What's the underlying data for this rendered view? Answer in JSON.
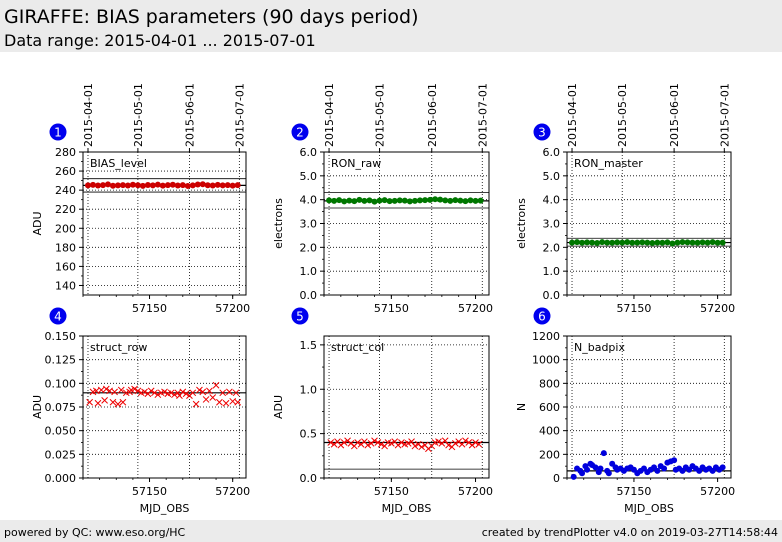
{
  "header": {
    "title": "GIRAFFE: BIAS parameters (90 days period)",
    "subtitle": "Data range: 2015-04-01 ... 2015-07-01"
  },
  "footer": {
    "left": "powered by QC: www.eso.org/HC",
    "right": "created by trendPlotter v4.0 on 2019-03-27T14:58:44"
  },
  "date_ticks": [
    "2015-04-01",
    "2015-05-01",
    "2015-06-01",
    "2015-07-01"
  ],
  "date_tick_mjd": [
    57113,
    57143,
    57174,
    57204
  ],
  "x_range_mjd": [
    57110,
    57208
  ],
  "x_ticks": [
    57150,
    57200
  ],
  "x_tick_labels": [
    "57150",
    "57200"
  ],
  "xlabel": "MJD_OBS",
  "chart_data": [
    {
      "number": "1",
      "type": "scatter",
      "label": "BIAS_level",
      "ylabel": "ADU",
      "ylim": [
        130,
        280
      ],
      "yticks": [
        140,
        160,
        180,
        200,
        220,
        240,
        260,
        280
      ],
      "ytick_labels": [
        "140",
        "160",
        "180",
        "200",
        "220",
        "240",
        "260",
        "280"
      ],
      "marker": "dot",
      "color": "#cc0000",
      "grid": true,
      "ref_lines": [
        245,
        238,
        252
      ],
      "x": [
        57113,
        57116,
        57119,
        57122,
        57125,
        57128,
        57131,
        57134,
        57137,
        57140,
        57143,
        57146,
        57149,
        57152,
        57155,
        57158,
        57161,
        57164,
        57167,
        57170,
        57173,
        57176,
        57179,
        57182,
        57185,
        57188,
        57191,
        57194,
        57197,
        57200,
        57203
      ],
      "y": [
        245,
        245.5,
        244.8,
        245.2,
        246,
        244.6,
        245,
        245.3,
        244.9,
        245.7,
        245.1,
        244.5,
        245.4,
        245,
        245.8,
        244.7,
        245.2,
        245.6,
        244.9,
        245.3,
        244.4,
        245,
        245.9,
        246.2,
        245.1,
        244.8,
        245.5,
        245,
        245.3,
        244.7,
        245.2
      ]
    },
    {
      "number": "2",
      "type": "scatter",
      "label": "RON_raw",
      "ylabel": "electrons",
      "ylim": [
        0,
        6
      ],
      "yticks": [
        0,
        1,
        2,
        3,
        4,
        5,
        6
      ],
      "ytick_labels": [
        "0.0",
        "1.0",
        "2.0",
        "3.0",
        "4.0",
        "5.0",
        "6.0"
      ],
      "marker": "dot",
      "color": "#007700",
      "grid": true,
      "ref_lines": [
        3.95,
        3.65,
        4.3
      ],
      "x": [
        57113,
        57116,
        57119,
        57122,
        57125,
        57128,
        57131,
        57134,
        57137,
        57140,
        57143,
        57146,
        57149,
        57152,
        57155,
        57158,
        57161,
        57164,
        57167,
        57170,
        57173,
        57176,
        57179,
        57182,
        57185,
        57188,
        57191,
        57194,
        57197,
        57200,
        57203
      ],
      "y": [
        3.97,
        3.95,
        3.98,
        3.93,
        3.96,
        3.94,
        3.99,
        3.95,
        3.97,
        3.92,
        3.96,
        3.98,
        3.94,
        3.95,
        3.97,
        3.96,
        3.93,
        3.95,
        3.97,
        3.98,
        3.99,
        4.02,
        4.0,
        3.97,
        3.95,
        3.98,
        3.96,
        3.94,
        3.97,
        3.95,
        3.96
      ]
    },
    {
      "number": "3",
      "type": "scatter",
      "label": "RON_master",
      "ylabel": "electrons",
      "ylim": [
        0,
        6
      ],
      "yticks": [
        0,
        1,
        2,
        3,
        4,
        5,
        6
      ],
      "ytick_labels": [
        "0.0",
        "1.0",
        "2.0",
        "3.0",
        "4.0",
        "5.0",
        "6.0"
      ],
      "marker": "dot",
      "color": "#007700",
      "grid": true,
      "ref_lines": [
        2.2,
        2.05,
        2.38
      ],
      "x": [
        57113,
        57116,
        57119,
        57122,
        57125,
        57128,
        57131,
        57134,
        57137,
        57140,
        57143,
        57146,
        57149,
        57152,
        57155,
        57158,
        57161,
        57164,
        57167,
        57170,
        57173,
        57176,
        57179,
        57182,
        57185,
        57188,
        57191,
        57194,
        57197,
        57200,
        57203
      ],
      "y": [
        2.2,
        2.22,
        2.19,
        2.21,
        2.2,
        2.18,
        2.22,
        2.2,
        2.19,
        2.21,
        2.2,
        2.22,
        2.19,
        2.2,
        2.21,
        2.2,
        2.18,
        2.2,
        2.19,
        2.21,
        2.16,
        2.2,
        2.22,
        2.21,
        2.2,
        2.19,
        2.21,
        2.2,
        2.22,
        2.19,
        2.2
      ]
    },
    {
      "number": "4",
      "type": "scatter",
      "label": "struct_row",
      "ylabel": "ADU",
      "ylim": [
        0,
        0.15
      ],
      "yticks": [
        0,
        0.025,
        0.05,
        0.075,
        0.1,
        0.125,
        0.15
      ],
      "ytick_labels": [
        "0.000",
        "0.025",
        "0.050",
        "0.075",
        "0.100",
        "0.125",
        "0.150"
      ],
      "marker": "cross",
      "color": "#ee0000",
      "grid": true,
      "ref_lines": [
        0.09
      ],
      "x": [
        57114,
        57116,
        57118,
        57119,
        57121,
        57123,
        57124,
        57126,
        57128,
        57129,
        57131,
        57133,
        57134,
        57136,
        57138,
        57139,
        57141,
        57143,
        57145,
        57147,
        57149,
        57151,
        57153,
        57155,
        57157,
        57159,
        57161,
        57163,
        57165,
        57167,
        57168,
        57170,
        57172,
        57174,
        57176,
        57178,
        57180,
        57182,
        57184,
        57186,
        57188,
        57190,
        57192,
        57194,
        57196,
        57198,
        57200,
        57202,
        57203
      ],
      "y": [
        0.08,
        0.091,
        0.092,
        0.079,
        0.093,
        0.082,
        0.094,
        0.092,
        0.08,
        0.091,
        0.078,
        0.093,
        0.08,
        0.09,
        0.091,
        0.093,
        0.094,
        0.092,
        0.09,
        0.091,
        0.089,
        0.092,
        0.09,
        0.088,
        0.09,
        0.091,
        0.089,
        0.09,
        0.088,
        0.09,
        0.087,
        0.091,
        0.089,
        0.087,
        0.09,
        0.078,
        0.093,
        0.091,
        0.083,
        0.092,
        0.085,
        0.098,
        0.08,
        0.09,
        0.079,
        0.091,
        0.081,
        0.09,
        0.08
      ]
    },
    {
      "number": "5",
      "type": "scatter",
      "label": "struct_col",
      "ylabel": "ADU",
      "ylim": [
        0,
        1.6
      ],
      "yticks": [
        0,
        0.5,
        1,
        1.5
      ],
      "ytick_labels": [
        "0.0",
        "0.5",
        "1.0",
        "1.5"
      ],
      "marker": "cross",
      "color": "#ee0000",
      "grid": true,
      "ref_lines": [
        0.4,
        0.1
      ],
      "x": [
        57114,
        57116,
        57118,
        57120,
        57122,
        57124,
        57126,
        57128,
        57130,
        57132,
        57134,
        57136,
        57138,
        57140,
        57142,
        57144,
        57146,
        57148,
        57150,
        57152,
        57154,
        57156,
        57158,
        57160,
        57162,
        57164,
        57166,
        57168,
        57170,
        57172,
        57174,
        57176,
        57178,
        57180,
        57182,
        57184,
        57186,
        57188,
        57190,
        57192,
        57194,
        57196,
        57198,
        57200,
        57202
      ],
      "y": [
        0.4,
        0.38,
        0.41,
        0.37,
        0.4,
        0.42,
        0.39,
        0.36,
        0.4,
        0.38,
        0.41,
        0.37,
        0.39,
        0.42,
        0.4,
        0.38,
        0.36,
        0.4,
        0.39,
        0.41,
        0.37,
        0.4,
        0.38,
        0.39,
        0.41,
        0.36,
        0.38,
        0.35,
        0.37,
        0.33,
        0.36,
        0.4,
        0.41,
        0.39,
        0.42,
        0.37,
        0.35,
        0.39,
        0.41,
        0.38,
        0.42,
        0.4,
        0.37,
        0.4,
        0.38
      ]
    },
    {
      "number": "6",
      "type": "scatter",
      "label": "N_badpix",
      "ylabel": "N",
      "ylim": [
        0,
        1200
      ],
      "yticks": [
        0,
        200,
        400,
        600,
        800,
        1000,
        1200
      ],
      "ytick_labels": [
        "0",
        "200",
        "400",
        "600",
        "800",
        "1000",
        "1200"
      ],
      "marker": "dot",
      "color": "#0000dd",
      "grid": true,
      "ref_lines": [
        60
      ],
      "x": [
        57114,
        57116,
        57118,
        57119,
        57121,
        57122,
        57124,
        57125,
        57127,
        57129,
        57130,
        57132,
        57134,
        57135,
        57137,
        57139,
        57140,
        57142,
        57144,
        57146,
        57148,
        57150,
        57152,
        57154,
        57156,
        57158,
        57160,
        57162,
        57164,
        57166,
        57168,
        57170,
        57172,
        57174,
        57175,
        57177,
        57179,
        57181,
        57183,
        57185,
        57187,
        57189,
        57191,
        57193,
        57195,
        57197,
        57199,
        57201,
        57203
      ],
      "y": [
        10,
        80,
        60,
        40,
        100,
        70,
        120,
        110,
        90,
        50,
        80,
        210,
        60,
        40,
        120,
        90,
        70,
        80,
        60,
        80,
        90,
        70,
        40,
        60,
        80,
        50,
        70,
        90,
        60,
        100,
        80,
        130,
        140,
        150,
        70,
        80,
        60,
        90,
        70,
        100,
        80,
        60,
        90,
        70,
        80,
        60,
        90,
        70,
        90
      ]
    }
  ]
}
